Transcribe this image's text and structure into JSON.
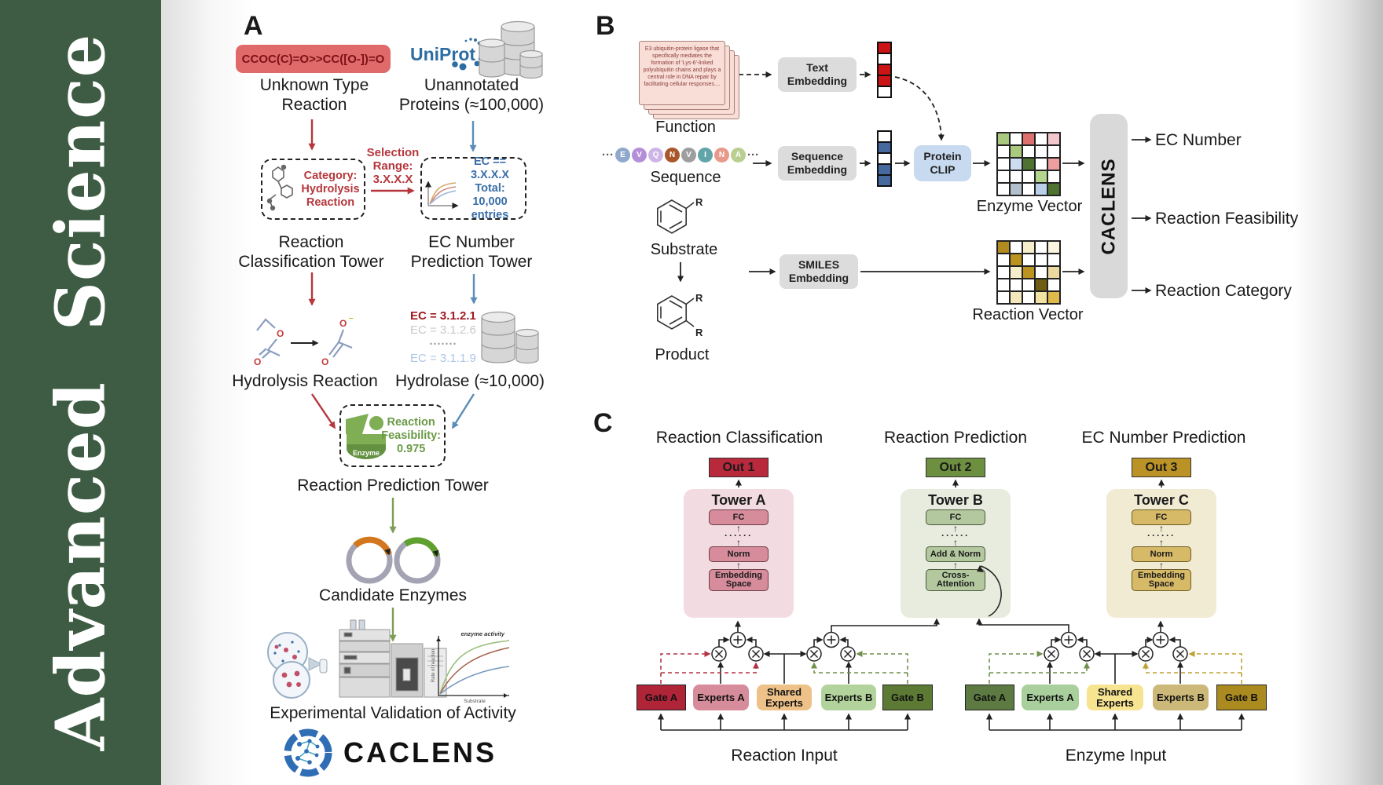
{
  "banner": {
    "title": "Advanced Science"
  },
  "panelA": {
    "label": "A",
    "smiles": "CCOC(C)=O>>CC([O-])=O",
    "unknownType": [
      "Unknown Type",
      "Reaction"
    ],
    "uniprot": "UniProt",
    "unannotated": [
      "Unannotated",
      "Proteins (≈100,000)"
    ],
    "selectionRange": [
      "Selection",
      "Range:",
      "3.X.X.X"
    ],
    "categoryBox": [
      "Category:",
      "Hydrolysis",
      "Reaction"
    ],
    "ecBox": [
      "EC == 3.X.X.X",
      "Total: 10,000",
      "entries"
    ],
    "classificationTower": [
      "Reaction",
      "Classification Tower"
    ],
    "ecTower": [
      "EC Number",
      "Prediction Tower"
    ],
    "hydrolysisReaction": "Hydrolysis Reaction",
    "ecList": [
      {
        "text": "EC = 3.1.2.1",
        "color": "#a01a22"
      },
      {
        "text": "EC = 3.1.2.6",
        "color": "#c9c9c9"
      },
      {
        "text": "·······",
        "color": "#9a9a9a"
      },
      {
        "text": "EC = 3.1.1.9",
        "color": "#adc6e6"
      }
    ],
    "hydrolase": "Hydrolase (≈10,000)",
    "enzymeBadge": "Enzyme",
    "feasibility": [
      "Reaction",
      "Feasibility:",
      "0.975"
    ],
    "predictionTower": "Reaction Prediction Tower",
    "candidateEnzymes": "Candidate Enzymes",
    "graph": {
      "curveLabel": "enzyme activity",
      "ylabel": "Rate of reaction",
      "xlabel": "Substrate"
    },
    "validation": "Experimental Validation of Activity",
    "logoText": "CACLENS"
  },
  "panelB": {
    "label": "B",
    "functionCard": "E3 ubiquitin-protein ligase that specifically mediates the formation of 'Lys-6'-linked polyubiquitin chains and plays a central role in DNA repair by facilitating cellular responses....",
    "functionLabel": "Function",
    "ellipsis": "···",
    "residues": [
      {
        "letter": "E",
        "color": "#8fa8cc"
      },
      {
        "letter": "V",
        "color": "#b48fd8"
      },
      {
        "letter": "Q",
        "color": "#cdb6e6"
      },
      {
        "letter": "N",
        "color": "#a9572a"
      },
      {
        "letter": "V",
        "color": "#9e9e9e"
      },
      {
        "letter": "I",
        "color": "#62a5a9"
      },
      {
        "letter": "N",
        "color": "#e89a8a"
      },
      {
        "letter": "A",
        "color": "#b9cf92"
      }
    ],
    "sequenceLabel": "Sequence",
    "substrateLabel": "Substrate",
    "productLabel": "Product",
    "rLabel": "R",
    "textEmbedding": [
      "Text",
      "Embedding"
    ],
    "sequenceEmbedding": [
      "Sequence",
      "Embedding"
    ],
    "smilesEmbedding": [
      "SMILES",
      "Embedding"
    ],
    "proteinClip": [
      "Protein",
      "CLIP"
    ],
    "textVector": [
      "#cc1417",
      "#ffffff",
      "#cc1417",
      "#cc1417",
      "#ffffff"
    ],
    "seqVector": [
      "#ffffff",
      "#46699f",
      "#ffffff",
      "#46699f",
      "#46699f"
    ],
    "enzymeGrid": [
      "#a9c97f",
      "#ffffff",
      "#dd6f6f",
      "#ffffff",
      "#f4c7cd",
      "#ffffff",
      "#a9c97f",
      "#ffffff",
      "#ffffff",
      "#ffffff",
      "#ffffff",
      "#cdddf1",
      "#4e7230",
      "#ffffff",
      "#ee9e9e",
      "#ffffff",
      "#ffffff",
      "#ffffff",
      "#b4d58e",
      "#ffffff",
      "#ffffff",
      "#b3bfcc",
      "#ffffff",
      "#bad0e9",
      "#4e7230"
    ],
    "reactionGrid": [
      "#b28a1e",
      "#ffffff",
      "#f6eecb",
      "#ffffff",
      "#fbf5e0",
      "#ffffff",
      "#bb941f",
      "#ffffff",
      "#ffffff",
      "#ffffff",
      "#ffffff",
      "#f6eecb",
      "#bb941f",
      "#ffffff",
      "#ecd9a0",
      "#ffffff",
      "#ffffff",
      "#ffffff",
      "#6e5d12",
      "#ffffff",
      "#ffffff",
      "#f3e7bb",
      "#ffffff",
      "#f3e3a2",
      "#dfb94c"
    ],
    "enzymeVectorLabel": "Enzyme Vector",
    "reactionVectorLabel": "Reaction Vector",
    "caclens": "CACLENS",
    "outputs": [
      "EC Number",
      "Reaction Feasibility",
      "Reaction Category"
    ]
  },
  "panelC": {
    "label": "C",
    "columns": [
      {
        "title": "Reaction Classification",
        "out": "Out 1",
        "tower": "Tower A",
        "layers": [
          "FC",
          "······",
          "Norm",
          "Embedding Space"
        ],
        "outColor": "#b8293c",
        "towerBg": "#f3dce1",
        "boxBg": "#d68c9b",
        "boxBorder": "#6b3d46"
      },
      {
        "title": "Reaction Prediction",
        "out": "Out 2",
        "tower": "Tower B",
        "layers": [
          "FC",
          "······",
          "Add & Norm",
          "Cross-Attention"
        ],
        "outColor": "#6d9040",
        "towerBg": "#e7ecdf",
        "boxBg": "#b3c89e",
        "boxBorder": "#4a5a38"
      },
      {
        "title": "EC Number Prediction",
        "out": "Out 3",
        "tower": "Tower C",
        "layers": [
          "FC",
          "······",
          "Norm",
          "Embedding Space"
        ],
        "outColor": "#bb9226",
        "towerBg": "#f2ebd4",
        "boxBg": "#d7ba67",
        "boxBorder": "#6b5a22"
      }
    ],
    "moe": [
      {
        "inputLabel": "Reaction Input",
        "boxes": [
          {
            "label": "Gate A",
            "bg": "#b02438"
          },
          {
            "label": "Experts A",
            "bg": "#d78c9b"
          },
          {
            "label": "Shared Experts",
            "bg": "#eec189"
          },
          {
            "label": "Experts B",
            "bg": "#b2d49c"
          },
          {
            "label": "Gate B",
            "bg": "#5d7a35"
          }
        ]
      },
      {
        "inputLabel": "Enzyme Input",
        "boxes": [
          {
            "label": "Gate A",
            "bg": "#5d7a42"
          },
          {
            "label": "Experts A",
            "bg": "#a9cf9c"
          },
          {
            "label": "Shared Experts",
            "bg": "#f7e491"
          },
          {
            "label": "Experts B",
            "bg": "#ccb878"
          },
          {
            "label": "Gate B",
            "bg": "#ab8a20"
          }
        ]
      }
    ]
  }
}
